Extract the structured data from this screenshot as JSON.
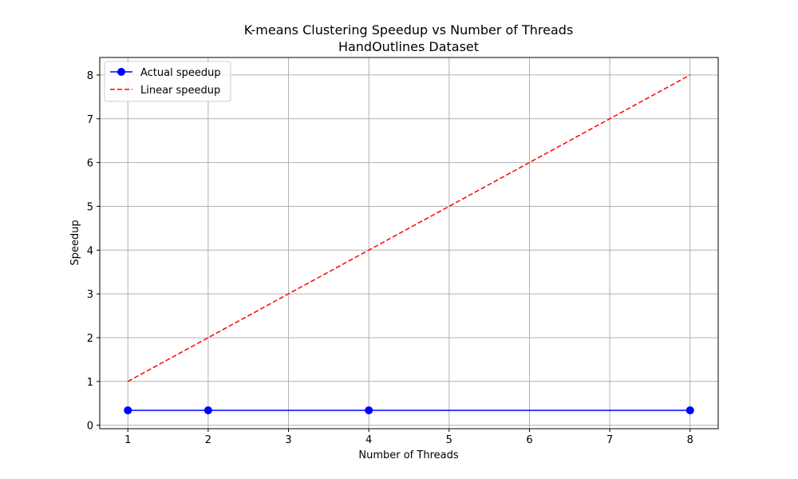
{
  "chart_data": {
    "type": "line",
    "title": "K-means Clustering Speedup vs Number of Threads",
    "subtitle": "HandOutlines Dataset",
    "xlabel": "Number of Threads",
    "ylabel": "Speedup",
    "x_ticks": [
      1,
      2,
      3,
      4,
      5,
      6,
      7,
      8
    ],
    "y_ticks": [
      0,
      1,
      2,
      3,
      4,
      5,
      6,
      7,
      8
    ],
    "xlim": [
      0.65,
      8.35
    ],
    "ylim": [
      -0.08,
      8.4
    ],
    "grid": true,
    "legend_position": "top-left",
    "series": [
      {
        "name": "Actual speedup",
        "style": "solid",
        "marker": "circle",
        "color": "#0000ff",
        "x": [
          1,
          2,
          4,
          8
        ],
        "y": [
          0.34,
          0.34,
          0.34,
          0.34
        ]
      },
      {
        "name": "Linear speedup",
        "style": "dashed",
        "marker": "none",
        "color": "#ff0000",
        "x": [
          1,
          2,
          4,
          8
        ],
        "y": [
          1,
          2,
          4,
          8
        ]
      }
    ]
  }
}
